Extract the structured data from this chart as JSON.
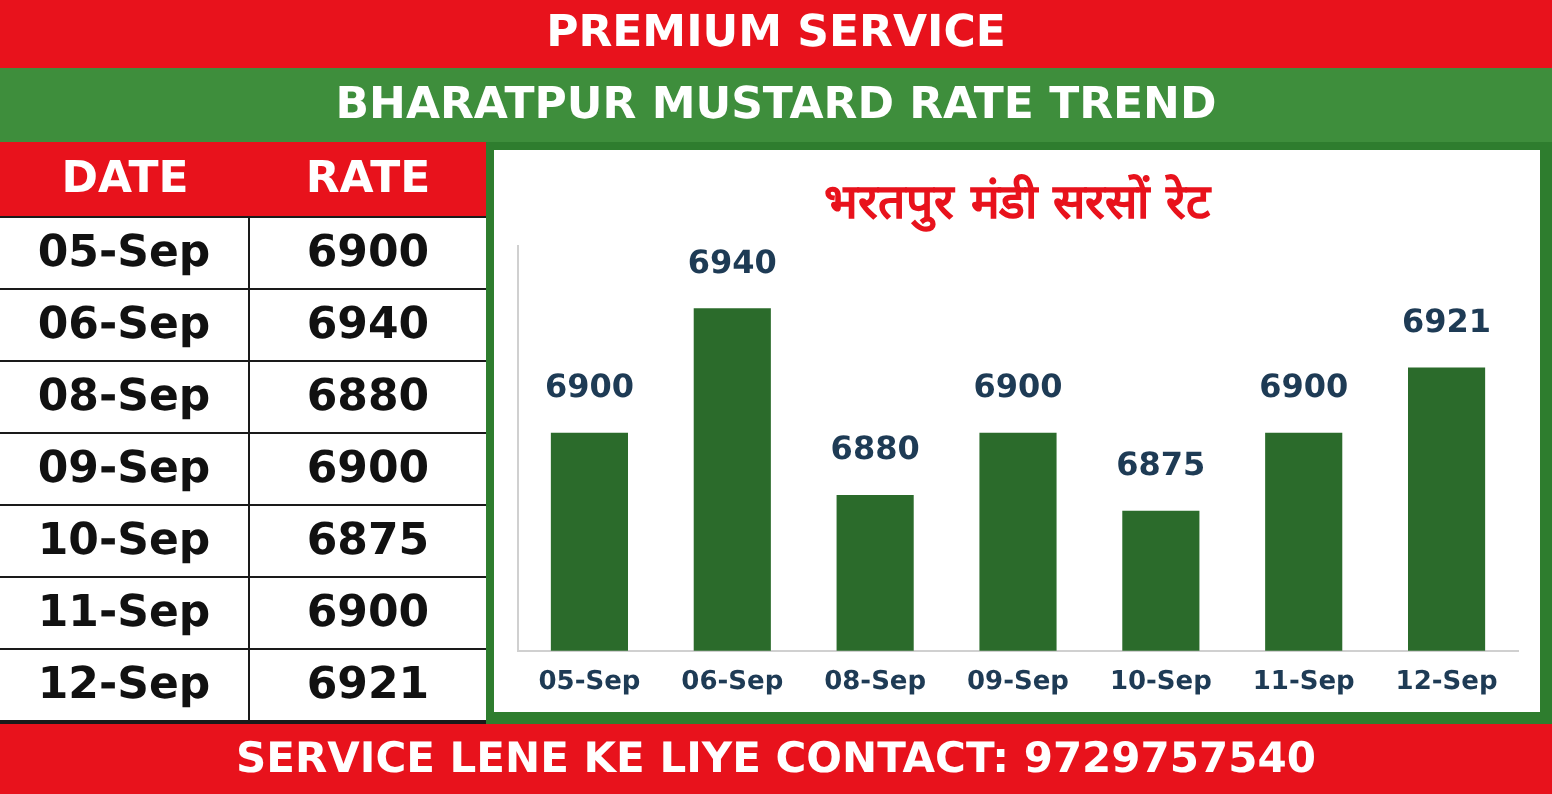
{
  "chart_data": {
    "type": "bar",
    "title": "भरतपुर मंडी सरसों रेट",
    "subtitle": "BHARATPUR MUSTARD RATE TREND",
    "annotations": [
      "PREMIUM SERVICE",
      "DATE",
      "RATE",
      "SERVICE LENE KE LIYE CONTACT: 9729757540"
    ],
    "categories": [
      "05-Sep",
      "06-Sep",
      "08-Sep",
      "09-Sep",
      "10-Sep",
      "11-Sep",
      "12-Sep"
    ],
    "values": [
      6900,
      6940,
      6880,
      6900,
      6875,
      6900,
      6921
    ],
    "value_labels": [
      "6900",
      "6940",
      "6880",
      "6900",
      "6875",
      "6900",
      "6921"
    ],
    "color": "#2b6b2b",
    "ylim": [
      6830,
      6960
    ],
    "grid": false,
    "legend": false
  }
}
